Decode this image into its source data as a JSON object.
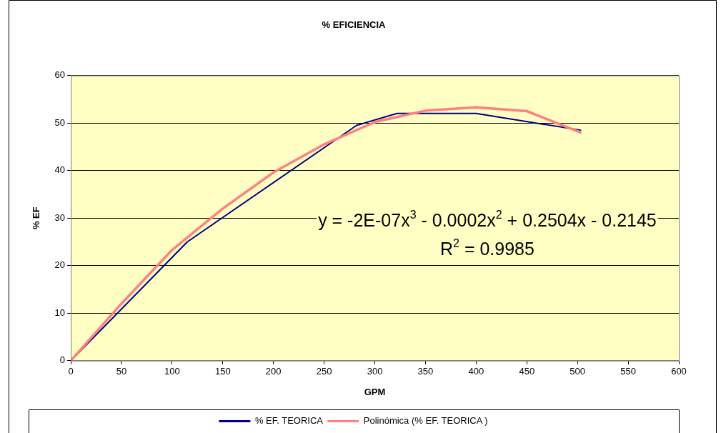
{
  "chart_data": {
    "type": "line",
    "title": "% EFICIENCIA",
    "xlabel": "GPM",
    "ylabel": "% EF",
    "xlim": [
      0,
      600
    ],
    "xticks": [
      0,
      50,
      100,
      150,
      200,
      250,
      300,
      350,
      400,
      450,
      500,
      550,
      600
    ],
    "ylim": [
      0,
      60
    ],
    "yticks": [
      0,
      10,
      20,
      30,
      40,
      50,
      60
    ],
    "grid": "y",
    "legend": "bottom",
    "marker": "none",
    "line_style": "solid",
    "series": [
      {
        "name": "% EF. TEORICA",
        "color": "#000080",
        "x": [
          0,
          115,
          282,
          322,
          400,
          503
        ],
        "values": [
          0,
          25,
          49.5,
          52,
          52,
          48.5
        ]
      },
      {
        "name": "Polinómica (% EF. TEORICA )",
        "type": "line",
        "color": "#ff8080",
        "x": [
          0,
          50,
          100,
          150,
          200,
          250,
          300,
          350,
          400,
          450,
          503
        ],
        "values": [
          0,
          12,
          23.3,
          32,
          39.6,
          45.5,
          50.2,
          52.6,
          53.3,
          52.5,
          48
        ]
      }
    ],
    "annotations": [
      "y = -2E-07x$^{3}$ - 0.0002x$^{2}$ + 0.2504x - 0.2145",
      "R$^{2}$ = 0.9985"
    ]
  }
}
